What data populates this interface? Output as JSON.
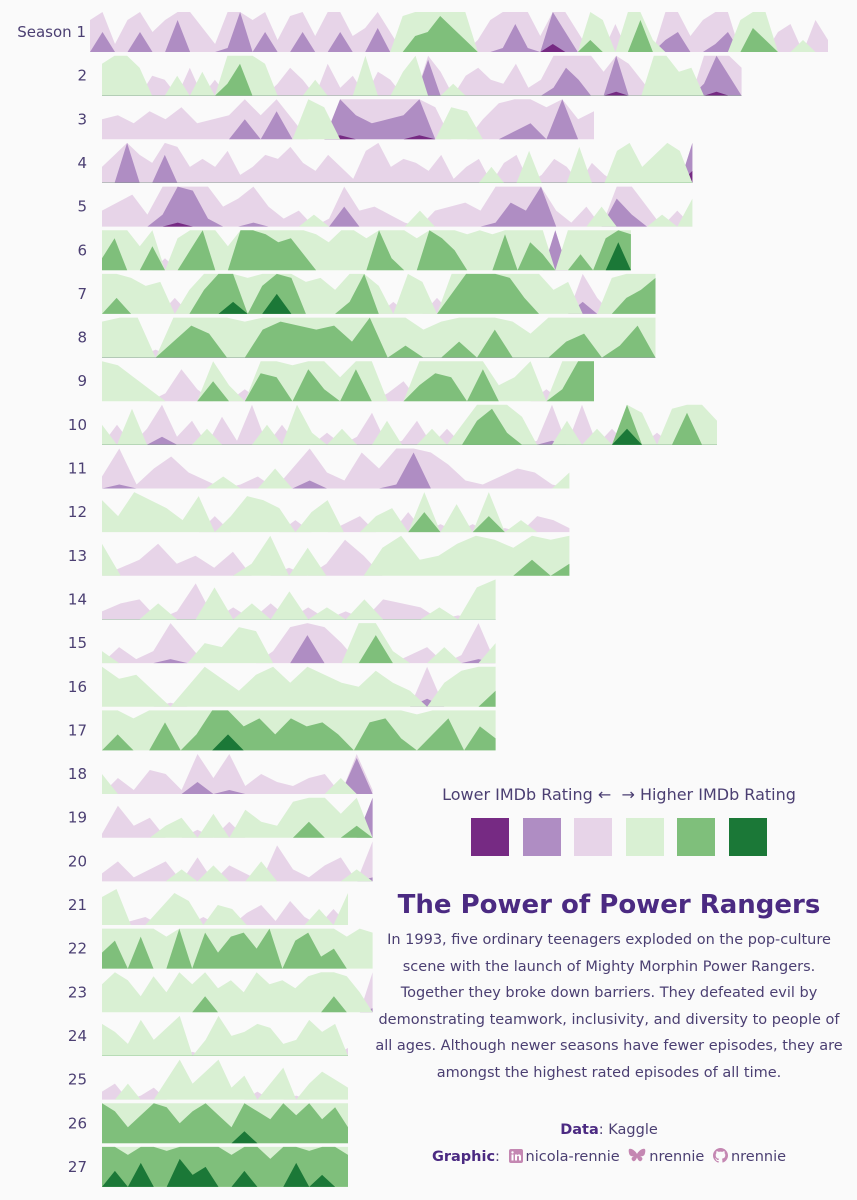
{
  "legend": {
    "caption": "Lower IMDb Rating ←  → Higher IMDb Rating",
    "colors": [
      "#762a83",
      "#af8dc3",
      "#e7d4e8",
      "#d9f0d3",
      "#7fbf7b",
      "#1b7837"
    ]
  },
  "title": "The Power of Power Rangers",
  "description": "In 1993, five ordinary teenagers exploded on the pop-culture scene with the launch of Mighty Morphin Power Rangers. Together they broke down barriers. They defeated evil by demonstrating teamwork, inclusivity, and diversity to people of all ages. Although newer seasons have fewer episodes, they are amongst the highest rated episodes of all time.",
  "credits": {
    "data_label": "Data",
    "data_value": "Kaggle",
    "graphic_label": "Graphic",
    "linkedin": "nicola-rennie",
    "bluesky": "nrennie",
    "github": "nrennie"
  },
  "chart_data": {
    "type": "area",
    "rating_scale": [
      1,
      2,
      3,
      4,
      5,
      6
    ],
    "seasons": [
      {
        "label": "Season 1",
        "episodes": 60,
        "ratings": [
          2.7,
          2.0,
          3.3,
          2.7,
          2.0,
          3.0,
          2.7,
          1.7,
          2.5,
          2.9,
          3.3,
          2.4,
          1.5,
          2.7,
          2.0,
          3.2,
          2.6,
          2.0,
          3.1,
          2.5,
          2.0,
          3.1,
          2.9,
          1.9,
          3.0,
          4.1,
          4.6,
          4.7,
          5.1,
          4.8,
          4.5,
          3.2,
          2.7,
          2.4,
          1.8,
          2.4,
          3.1,
          1.3,
          2.0,
          3.0,
          4.5,
          4.0,
          2.8,
          4.2,
          5.0,
          3.5,
          2.2,
          2.0,
          3.1,
          2.7,
          2.3,
          2.0,
          4.0,
          4.8,
          4.5,
          3.0,
          2.8,
          3.5,
          2.7,
          3.2
        ]
      },
      {
        "label": "2",
        "episodes": 52,
        "ratings": [
          4.0,
          4.4,
          4.3,
          3.9,
          3.0,
          3.1,
          3.7,
          2.8,
          3.8,
          3.1,
          4.5,
          5.0,
          4.4,
          4.0,
          3.2,
          2.8,
          3.1,
          3.6,
          2.7,
          3.3,
          3.0,
          4.3,
          2.9,
          3.1,
          3.8,
          4.3,
          1.6,
          2.9,
          3.5,
          3.0,
          2.8,
          3.1,
          3.2,
          2.7,
          3.3,
          3.1,
          2.3,
          1.8,
          2.1,
          2.5,
          2.9,
          1.4,
          2.7,
          3.1,
          4.2,
          4.3,
          3.8,
          3.9,
          2.2,
          1.4,
          2.0,
          2.8
        ]
      },
      {
        "label": "3",
        "episodes": 40,
        "ratings": [
          3.0,
          2.9,
          3.1,
          2.8,
          3.0,
          2.7,
          3.1,
          3.0,
          2.9,
          2.0,
          2.9,
          1.8,
          3.0,
          4.3,
          4.0,
          1.4,
          1.9,
          2.1,
          2.0,
          1.9,
          1.4,
          2.7,
          4.0,
          3.9,
          3.0,
          2.6,
          2.3,
          2.1,
          2.7,
          1.5,
          3.0,
          2.8
        ]
      },
      {
        "label": "4",
        "episodes": 48,
        "ratings": [
          3.1,
          2.8,
          1.5,
          2.8,
          3.0,
          1.8,
          2.6,
          3.1,
          2.9,
          3.1,
          2.7,
          3.3,
          3.1,
          2.8,
          2.9,
          2.6,
          3.0,
          3.2,
          2.8,
          3.1,
          3.4,
          2.7,
          2.5,
          3.1,
          2.9,
          3.0,
          3.2,
          2.8,
          3.4,
          3.1,
          2.9,
          3.6,
          3.0,
          2.8,
          4.0,
          3.3,
          2.9,
          3.1,
          4.1,
          3.0,
          3.3,
          4.0,
          4.2,
          3.6,
          3.9,
          4.2,
          4.0,
          1.2
        ]
      },
      {
        "label": "5",
        "episodes": 48,
        "ratings": [
          3.1,
          2.9,
          2.7,
          3.2,
          2.2,
          1.4,
          1.6,
          2.3,
          3.0,
          2.8,
          2.4,
          3.0,
          3.3,
          3.1,
          3.5,
          3.3,
          2.0,
          3.1,
          3.0,
          3.2,
          3.4,
          3.6,
          3.1,
          3.0,
          2.9,
          3.1,
          2.4,
          1.9,
          2.1,
          1.5,
          3.1,
          3.4,
          3.0,
          3.7,
          1.8,
          2.2,
          3.0,
          3.5,
          3.1,
          3.9
        ]
      },
      {
        "label": "6",
        "episodes": 43,
        "ratings": [
          4.5,
          5.0,
          4.3,
          3.8,
          4.8,
          3.2,
          4.0,
          4.7,
          5.2,
          4.3,
          3.8,
          5.3,
          5.4,
          5.1,
          4.9,
          5.0,
          4.6,
          4.1,
          3.9,
          4.4,
          4.2,
          4.0,
          5.3,
          4.5,
          4.4,
          4.0,
          5.3,
          5.0,
          4.7,
          4.1,
          4.2,
          4.1,
          5.1,
          4.4,
          4.9,
          4.6,
          1.5,
          4.4,
          4.6,
          4.2,
          5.0,
          5.9,
          5.1
        ]
      },
      {
        "label": "7",
        "episodes": 45,
        "ratings": [
          4.2,
          4.6,
          4.1,
          3.9,
          4.0,
          3.1,
          3.8,
          4.8,
          5.2,
          5.5,
          4.1,
          4.9,
          5.7,
          5.1,
          4.0,
          4.1,
          3.8,
          4.5,
          5.2,
          3.9,
          3.2,
          4.3,
          4.0,
          3.1,
          4.7,
          5.3,
          5.2,
          5.4,
          5.1,
          4.6,
          4.2,
          3.8,
          4.0,
          2.2,
          3.1,
          4.1,
          4.6,
          4.8,
          5.1
        ]
      },
      {
        "label": "8",
        "episodes": 45,
        "ratings": [
          4.1,
          4.4,
          4.2,
          3.3,
          4.6,
          5.0,
          4.8,
          4.4,
          4.1,
          4.9,
          5.1,
          5.0,
          4.9,
          5.0,
          4.6,
          5.2,
          4.3,
          4.5,
          3.9,
          4.1,
          4.6,
          4.2,
          4.9,
          4.1,
          3.8,
          4.4,
          4.6,
          4.8,
          4.3,
          4.5,
          5.0,
          4.4
        ]
      },
      {
        "label": "9",
        "episodes": 40,
        "ratings": [
          4.4,
          4.1,
          3.8,
          3.5,
          3.3,
          2.7,
          3.2,
          4.7,
          3.6,
          3.2,
          4.9,
          4.8,
          4.1,
          5.0,
          4.5,
          3.8,
          5.0,
          4.2,
          3.3,
          3.0,
          4.6,
          4.9,
          4.8,
          4.3,
          5.0,
          3.6,
          3.8,
          4.3,
          3.2,
          4.5,
          5.2,
          5.3
        ]
      },
      {
        "label": "10",
        "episodes": 50,
        "ratings": [
          3.7,
          3.0,
          4.1,
          3.1,
          2.3,
          3.3,
          2.9,
          3.6,
          2.8,
          3.4,
          2.5,
          3.7,
          3.0,
          4.2,
          3.5,
          3.2,
          3.6,
          3.3,
          2.7,
          3.8,
          3.4,
          2.9,
          3.6,
          3.1,
          3.7,
          4.8,
          5.1,
          4.5,
          3.9,
          3.4,
          2.4,
          3.8,
          2.5,
          3.6,
          3.1,
          5.6,
          4.0,
          3.2,
          4.1,
          5.0,
          4.4,
          3.8
        ]
      },
      {
        "label": "11",
        "episodes": 38,
        "ratings": [
          3.2,
          2.4,
          3.4,
          3.0,
          2.7,
          3.1,
          3.3,
          3.5,
          3.4,
          3.2,
          3.7,
          3.0,
          2.3,
          3.1,
          3.3,
          2.6,
          3.0,
          2.4,
          1.6,
          2.6,
          2.9,
          3.3,
          3.4,
          3.2,
          3.0,
          3.1,
          3.4,
          3.6
        ]
      },
      {
        "label": "12",
        "episodes": 38,
        "ratings": [
          4.0,
          3.6,
          4.3,
          4.0,
          3.8,
          3.5,
          4.1,
          3.1,
          3.6,
          4.1,
          4.0,
          3.8,
          3.2,
          3.7,
          4.0,
          3.3,
          3.1,
          3.6,
          3.8,
          3.0,
          4.7,
          3.3,
          3.9,
          3.3,
          4.6,
          3.4,
          3.5,
          3.1,
          3.2,
          3.4
        ]
      },
      {
        "label": "13",
        "episodes": 38,
        "ratings": [
          4.0,
          3.3,
          3.1,
          2.7,
          3.2,
          3.0,
          3.3,
          2.9,
          3.5,
          4.4,
          3.3,
          3.9,
          3.2,
          2.6,
          3.0,
          3.9,
          4.2,
          3.6,
          3.7,
          4.0,
          4.3,
          4.1,
          3.9,
          4.6,
          4.1,
          4.5
        ]
      },
      {
        "label": "14",
        "episodes": 32,
        "ratings": [
          3.3,
          3.1,
          3.0,
          3.6,
          3.3,
          2.6,
          4.0,
          3.2,
          3.6,
          3.1,
          3.9,
          3.2,
          3.5,
          3.3,
          3.7,
          3.0,
          3.1,
          3.2,
          3.5,
          3.4,
          4.0,
          4.4
        ]
      },
      {
        "label": "15",
        "episodes": 32,
        "ratings": [
          3.5,
          3.1,
          3.4,
          3.2,
          2.4,
          3.0,
          3.7,
          3.6,
          4.1,
          4.0,
          3.2,
          2.6,
          1.8,
          2.6,
          3.0,
          4.2,
          4.9,
          3.5,
          3.3,
          3.1,
          3.6,
          3.3,
          2.4,
          3.7
        ]
      },
      {
        "label": "16",
        "episodes": 32,
        "ratings": [
          4.2,
          3.9,
          4.0,
          3.6,
          3.4,
          3.7,
          4.3,
          3.9,
          3.6,
          4.0,
          4.2,
          3.8,
          4.3,
          4.0,
          3.8,
          3.7,
          4.1,
          3.8,
          3.6,
          2.3,
          3.8,
          4.1,
          4.3,
          4.6
        ]
      },
      {
        "label": "17",
        "episodes": 32,
        "ratings": [
          4.4,
          4.6,
          4.0,
          4.3,
          4.9,
          4.2,
          4.6,
          5.2,
          5.6,
          4.8,
          5.0,
          4.6,
          5.0,
          4.8,
          4.9,
          4.6,
          4.3,
          4.9,
          5.0,
          4.5,
          4.1,
          4.6,
          5.0,
          4.4,
          4.8,
          4.5
        ]
      },
      {
        "label": "18",
        "episodes": 22,
        "ratings": [
          3.7,
          3.1,
          3.4,
          2.9,
          3.0,
          3.4,
          2.2,
          3.1,
          2.4,
          3.3,
          3.0,
          3.2,
          3.3,
          3.1,
          3.0,
          3.6,
          1.6,
          3.4
        ]
      },
      {
        "label": "19",
        "episodes": 22,
        "ratings": [
          3.4,
          2.7,
          3.2,
          3.0,
          3.5,
          3.7,
          3.3,
          3.8,
          3.1,
          3.9,
          3.6,
          3.5,
          4.1,
          4.6,
          4.2,
          3.8,
          4.5,
          1.5
        ]
      },
      {
        "label": "20",
        "episodes": 22,
        "ratings": [
          3.3,
          3.0,
          3.4,
          3.2,
          3.0,
          3.5,
          2.9,
          3.6,
          3.1,
          3.3,
          3.7,
          2.6,
          3.2,
          3.4,
          3.1,
          2.9,
          3.5,
          2.4
        ]
      },
      {
        "label": "21",
        "episodes": 20,
        "ratings": [
          3.9,
          4.1,
          3.4,
          3.3,
          3.6,
          4.0,
          3.8,
          3.3,
          3.7,
          3.6,
          3.2,
          3.0,
          3.4,
          2.9,
          3.3,
          3.6,
          3.1,
          4.0
        ]
      },
      {
        "label": "22",
        "episodes": 22,
        "ratings": [
          4.6,
          4.9,
          4.3,
          5.0,
          4.4,
          4.0,
          5.4,
          4.3,
          5.1,
          4.6,
          5.0,
          5.1,
          4.7,
          5.3,
          4.2,
          4.9,
          5.1,
          4.5,
          4.7,
          4.0,
          4.4,
          4.1
        ]
      },
      {
        "label": "23",
        "episodes": 22,
        "ratings": [
          3.9,
          4.4,
          4.0,
          3.6,
          4.1,
          3.7,
          4.3,
          3.9,
          4.6,
          3.8,
          4.0,
          3.7,
          4.3,
          3.9,
          4.0,
          3.8,
          4.1,
          4.3,
          4.6,
          4.1,
          3.7,
          2.4
        ]
      },
      {
        "label": "24",
        "episodes": 20,
        "ratings": [
          4.0,
          3.8,
          3.5,
          4.1,
          3.6,
          3.9,
          4.2,
          3.4,
          3.6,
          4.3,
          3.7,
          3.8,
          4.0,
          3.9,
          3.5,
          3.6,
          4.1,
          3.8,
          4.0,
          3.3
        ]
      },
      {
        "label": "25",
        "episodes": 20,
        "ratings": [
          3.3,
          3.1,
          3.6,
          3.4,
          3.2,
          3.7,
          4.4,
          3.6,
          3.9,
          4.2,
          3.5,
          3.8,
          3.3,
          3.6,
          4.0,
          3.4,
          3.6,
          3.9,
          3.7,
          3.5
        ]
      },
      {
        "label": "26",
        "episodes": 20,
        "ratings": [
          5.2,
          5.0,
          4.6,
          4.9,
          5.4,
          5.1,
          4.7,
          5.0,
          5.3,
          4.9,
          4.6,
          5.5,
          5.0,
          4.8,
          5.2,
          4.9,
          5.3,
          4.8,
          5.1,
          4.6
        ]
      },
      {
        "label": "27",
        "episodes": 20,
        "ratings": [
          5.2,
          5.6,
          5.0,
          5.8,
          5.4,
          5.1,
          5.9,
          5.5,
          5.7,
          5.3,
          5.0,
          5.6,
          5.2,
          4.9,
          5.4,
          5.8,
          5.1,
          5.5,
          5.3,
          5.0
        ]
      }
    ]
  }
}
